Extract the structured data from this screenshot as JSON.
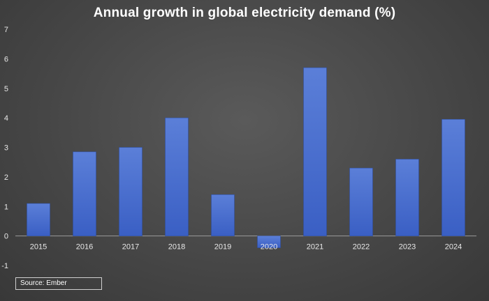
{
  "chart_data": {
    "type": "bar",
    "title": "Annual growth in global electricity demand (%)",
    "categories": [
      "2015",
      "2016",
      "2017",
      "2018",
      "2019",
      "2020",
      "2021",
      "2022",
      "2023",
      "2024"
    ],
    "values": [
      1.1,
      2.85,
      3.0,
      4.0,
      1.4,
      -0.4,
      5.7,
      2.3,
      2.6,
      3.95
    ],
    "ylim": [
      -1,
      7
    ],
    "yticks": [
      -1,
      0,
      1,
      2,
      3,
      4,
      5,
      6,
      7
    ],
    "xlabel": "",
    "ylabel": "",
    "grid": false,
    "bar_color_top": "#5b7fd8",
    "bar_color_bottom": "#3a5fc4",
    "background_color": "#474747"
  },
  "source": "Source: Ember"
}
